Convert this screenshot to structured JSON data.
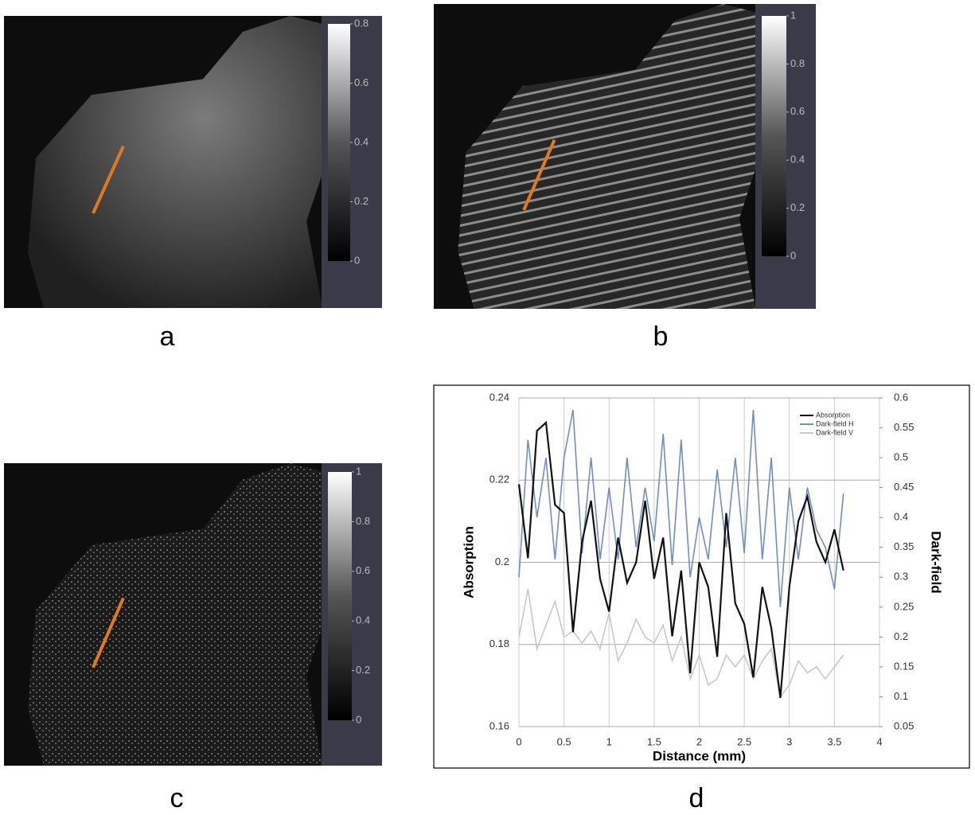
{
  "chart_data": [
    {
      "type": "image",
      "label": "a",
      "colorbar_lim": [
        0,
        0.8
      ],
      "colorbar_ticks": [
        0,
        0.2,
        0.4,
        0.6,
        0.8
      ]
    },
    {
      "type": "image",
      "label": "b",
      "colorbar_lim": [
        0,
        1
      ],
      "colorbar_ticks": [
        0,
        0.2,
        0.4,
        0.6,
        0.8,
        1
      ]
    },
    {
      "type": "image",
      "label": "c",
      "colorbar_lim": [
        0,
        1
      ],
      "colorbar_ticks": [
        0,
        0.2,
        0.4,
        0.6,
        0.8,
        1
      ]
    },
    {
      "type": "line",
      "label": "d",
      "xlabel": "Distance (mm)",
      "ylabel": "Absorption",
      "y2label": "Dark-field",
      "xlim": [
        0,
        4
      ],
      "xticks": [
        0,
        0.5,
        1,
        1.5,
        2,
        2.5,
        3,
        3.5,
        4
      ],
      "ylim": [
        0.16,
        0.24
      ],
      "yticks": [
        0.16,
        0.18,
        0.2,
        0.22,
        0.24
      ],
      "y2lim": [
        0.05,
        0.6
      ],
      "y2ticks": [
        0.05,
        0.1,
        0.15,
        0.2,
        0.25,
        0.3,
        0.35,
        0.4,
        0.45,
        0.5,
        0.55,
        0.6
      ],
      "grid": true,
      "legend": "top-right",
      "x": [
        0,
        0.1,
        0.2,
        0.3,
        0.4,
        0.5,
        0.6,
        0.7,
        0.8,
        0.9,
        1,
        1.1,
        1.2,
        1.3,
        1.4,
        1.5,
        1.6,
        1.7,
        1.8,
        1.9,
        2,
        2.1,
        2.2,
        2.3,
        2.4,
        2.5,
        2.6,
        2.7,
        2.8,
        2.9,
        3,
        3.1,
        3.2,
        3.3,
        3.4,
        3.5,
        3.6
      ],
      "series": [
        {
          "name": "Absorption",
          "color": "#111111",
          "axis": "y",
          "values": [
            0.219,
            0.201,
            0.232,
            0.234,
            0.214,
            0.212,
            0.183,
            0.205,
            0.215,
            0.196,
            0.188,
            0.206,
            0.195,
            0.2,
            0.215,
            0.196,
            0.206,
            0.182,
            0.198,
            0.173,
            0.2,
            0.194,
            0.177,
            0.212,
            0.19,
            0.185,
            0.172,
            0.194,
            0.184,
            0.167,
            0.194,
            0.21,
            0.216,
            0.205,
            0.2,
            0.208,
            0.198
          ]
        },
        {
          "name": "Dark-field H",
          "color": "#6f8fc0",
          "axis": "y2",
          "values": [
            0.3,
            0.53,
            0.4,
            0.5,
            0.33,
            0.5,
            0.58,
            0.34,
            0.5,
            0.33,
            0.45,
            0.33,
            0.5,
            0.35,
            0.45,
            0.36,
            0.54,
            0.32,
            0.53,
            0.3,
            0.4,
            0.33,
            0.48,
            0.35,
            0.5,
            0.34,
            0.58,
            0.33,
            0.5,
            0.25,
            0.45,
            0.33,
            0.45,
            0.38,
            0.35,
            0.28,
            0.44
          ]
        },
        {
          "name": "Dark-field V",
          "color": "#c8c8c8",
          "axis": "y2",
          "values": [
            0.2,
            0.28,
            0.18,
            0.22,
            0.26,
            0.2,
            0.21,
            0.19,
            0.21,
            0.18,
            0.24,
            0.16,
            0.19,
            0.23,
            0.2,
            0.19,
            0.22,
            0.16,
            0.2,
            0.13,
            0.17,
            0.12,
            0.13,
            0.17,
            0.15,
            0.17,
            0.13,
            0.16,
            0.18,
            0.1,
            0.12,
            0.16,
            0.14,
            0.15,
            0.13,
            0.15,
            0.17
          ]
        }
      ]
    }
  ]
}
